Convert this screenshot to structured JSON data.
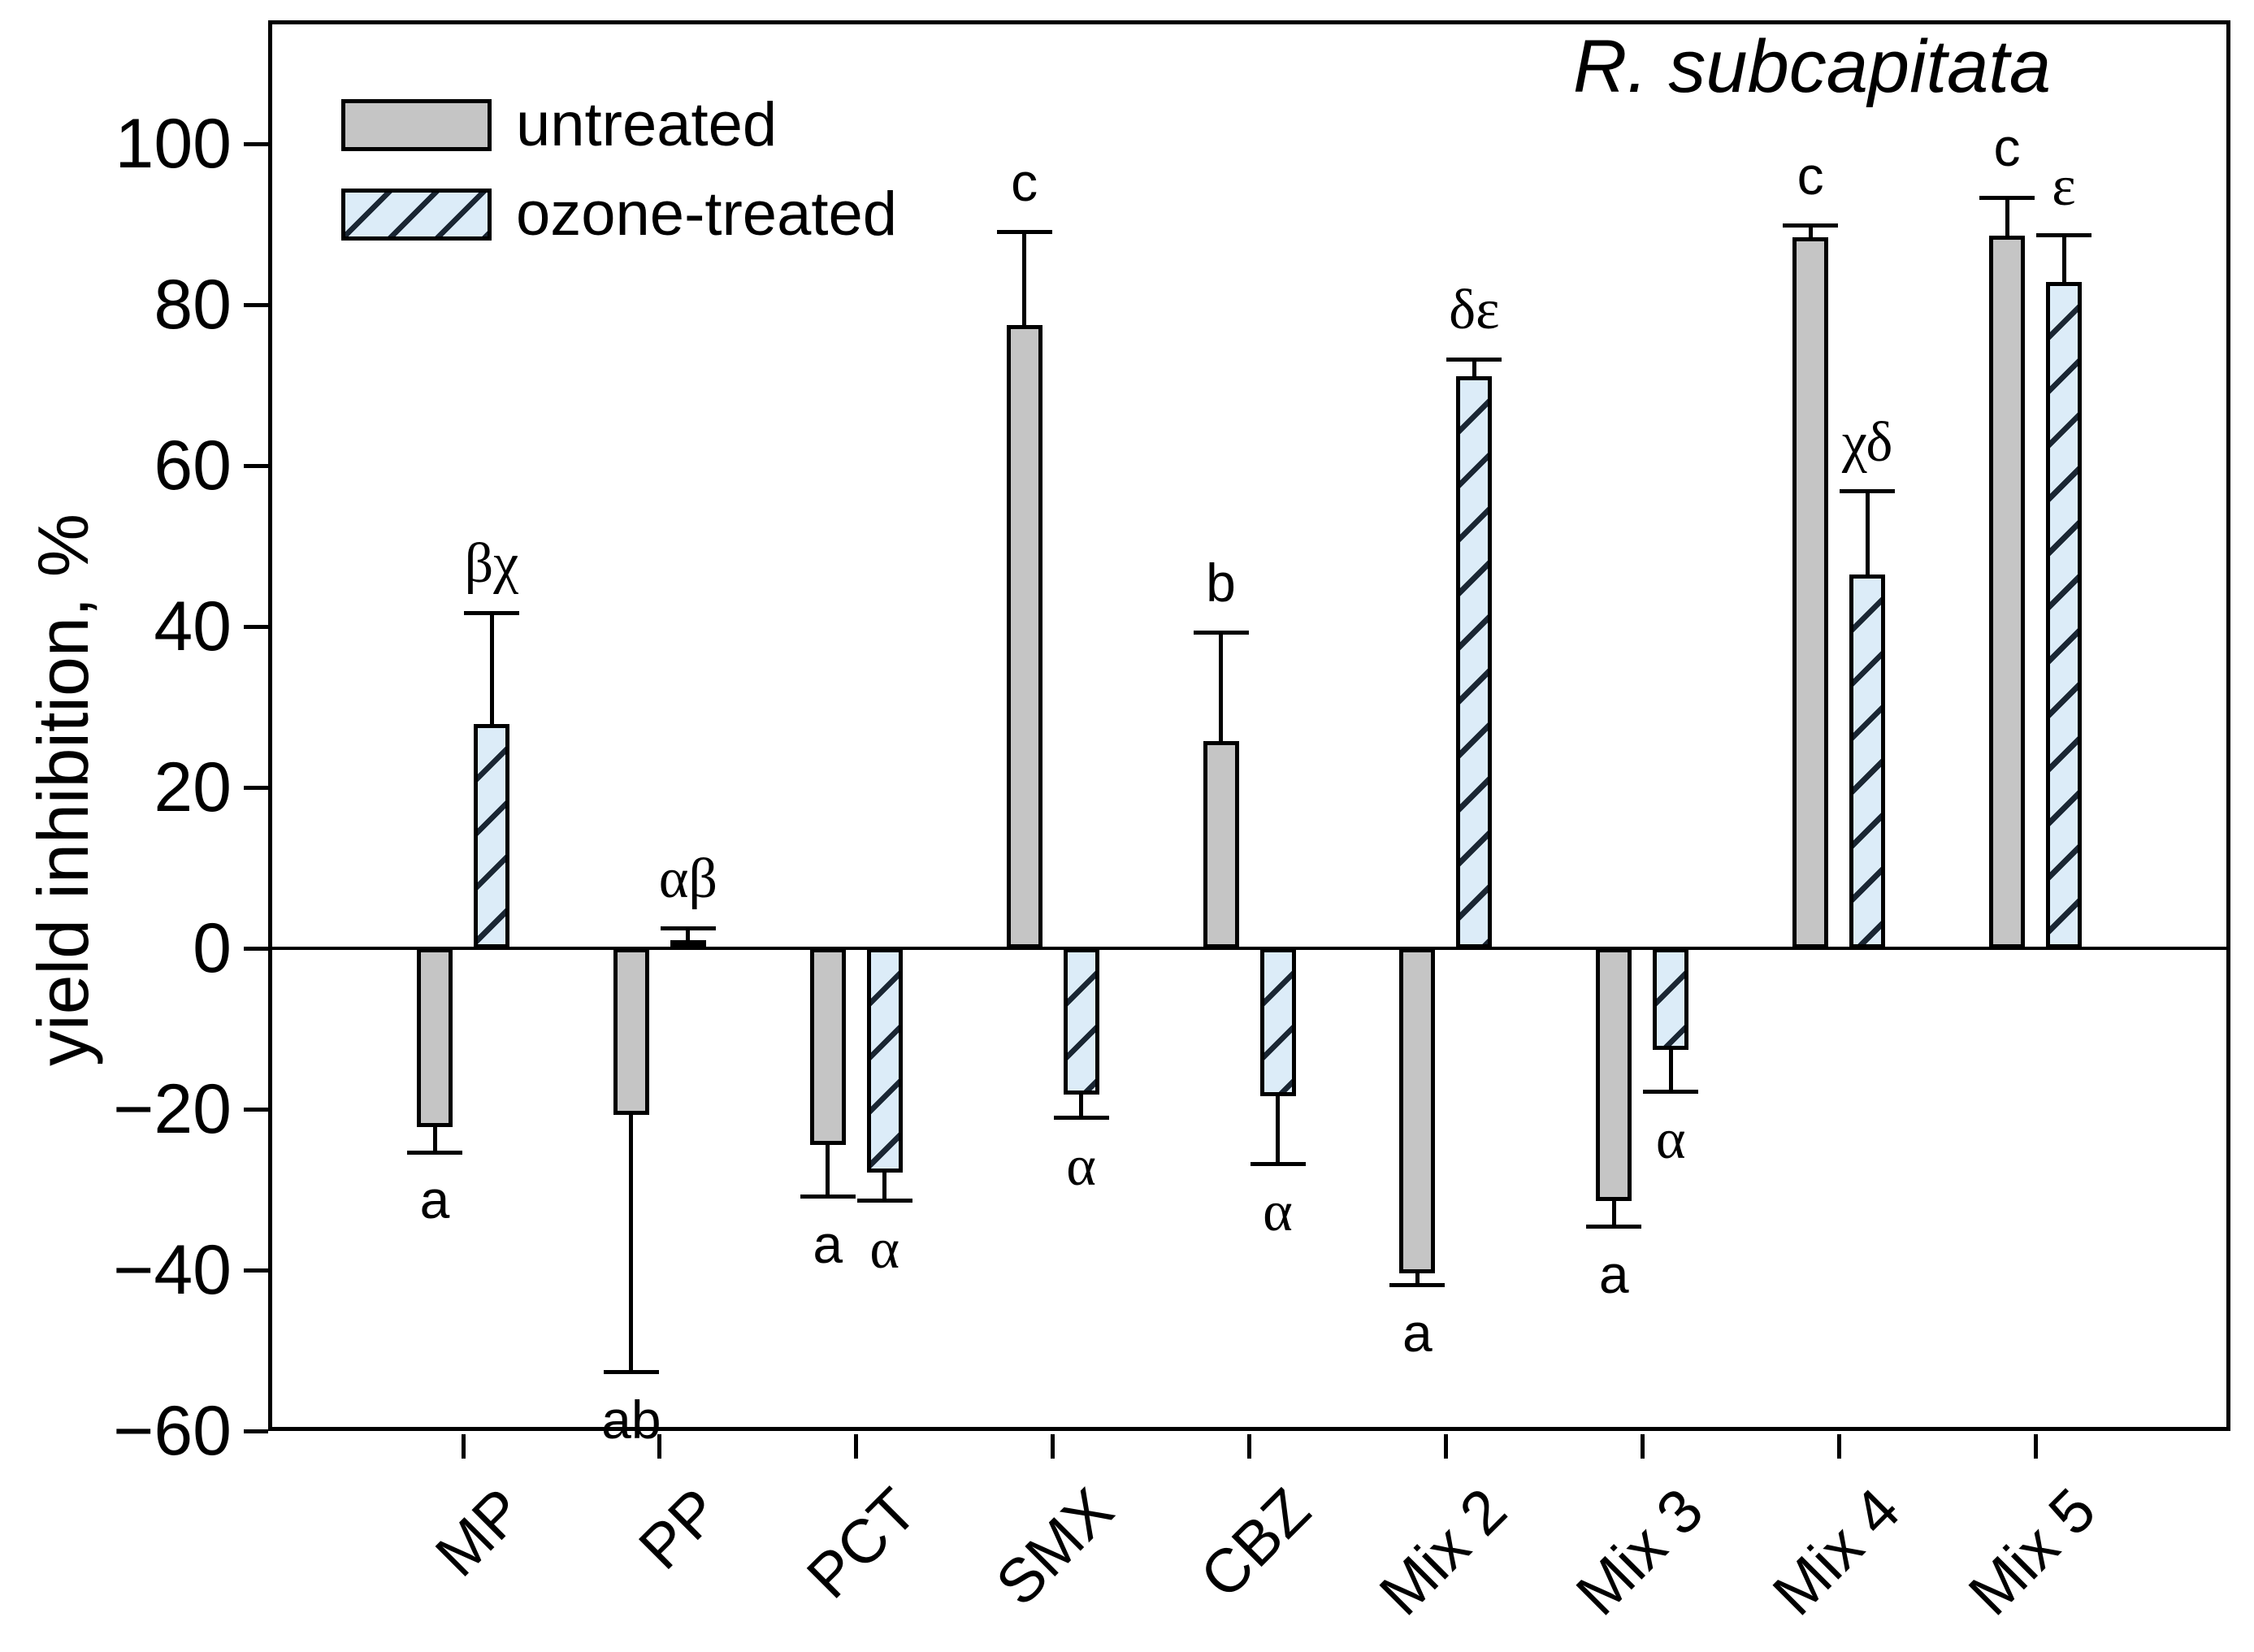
{
  "chart_data": {
    "type": "bar",
    "title": "R. subcapitata",
    "ylabel": "yield inhibition, %",
    "ylim": [
      -60,
      115
    ],
    "yticks": [
      100,
      80,
      60,
      40,
      20,
      0,
      -20,
      -40,
      -60
    ],
    "grid": false,
    "legend_position": "top-left",
    "categories": [
      "MP",
      "PP",
      "PCT",
      "SMX",
      "CBZ",
      "Mix 2",
      "Mix 3",
      "Mix 4",
      "Mix 5"
    ],
    "series": [
      {
        "name": "untreated",
        "fill": "#c5c5c5",
        "hatch": false,
        "values": [
          -22.2,
          -20.7,
          -24.4,
          77.5,
          25.8,
          -40.4,
          -31.4,
          88.4,
          88.6
        ],
        "errors": [
          3.2,
          32.0,
          6.5,
          11.5,
          13.4,
          1.5,
          3.2,
          1.4,
          4.7
        ],
        "sig_labels": [
          "a",
          "ab",
          "a",
          "c",
          "b",
          "a",
          "a",
          "c",
          "c"
        ]
      },
      {
        "name": "ozone-treated",
        "fill": "#dcecf8",
        "hatch": true,
        "values": [
          27.9,
          1.0,
          -27.9,
          -18.2,
          -18.4,
          71.1,
          -12.6,
          46.5,
          82.8
        ],
        "errors": [
          13.8,
          1.5,
          3.5,
          2.9,
          8.4,
          2.1,
          5.2,
          10.3,
          5.8
        ],
        "sig_labels": [
          "βχ",
          "αβ",
          "α",
          "α",
          "α",
          "δε",
          "α",
          "χδ",
          "ε"
        ]
      }
    ]
  },
  "colors": {
    "untreated_fill": "#c5c5c5",
    "ozone_fill": "#dcecf8",
    "hatch_line": "#1a2633",
    "axis": "#000000"
  }
}
